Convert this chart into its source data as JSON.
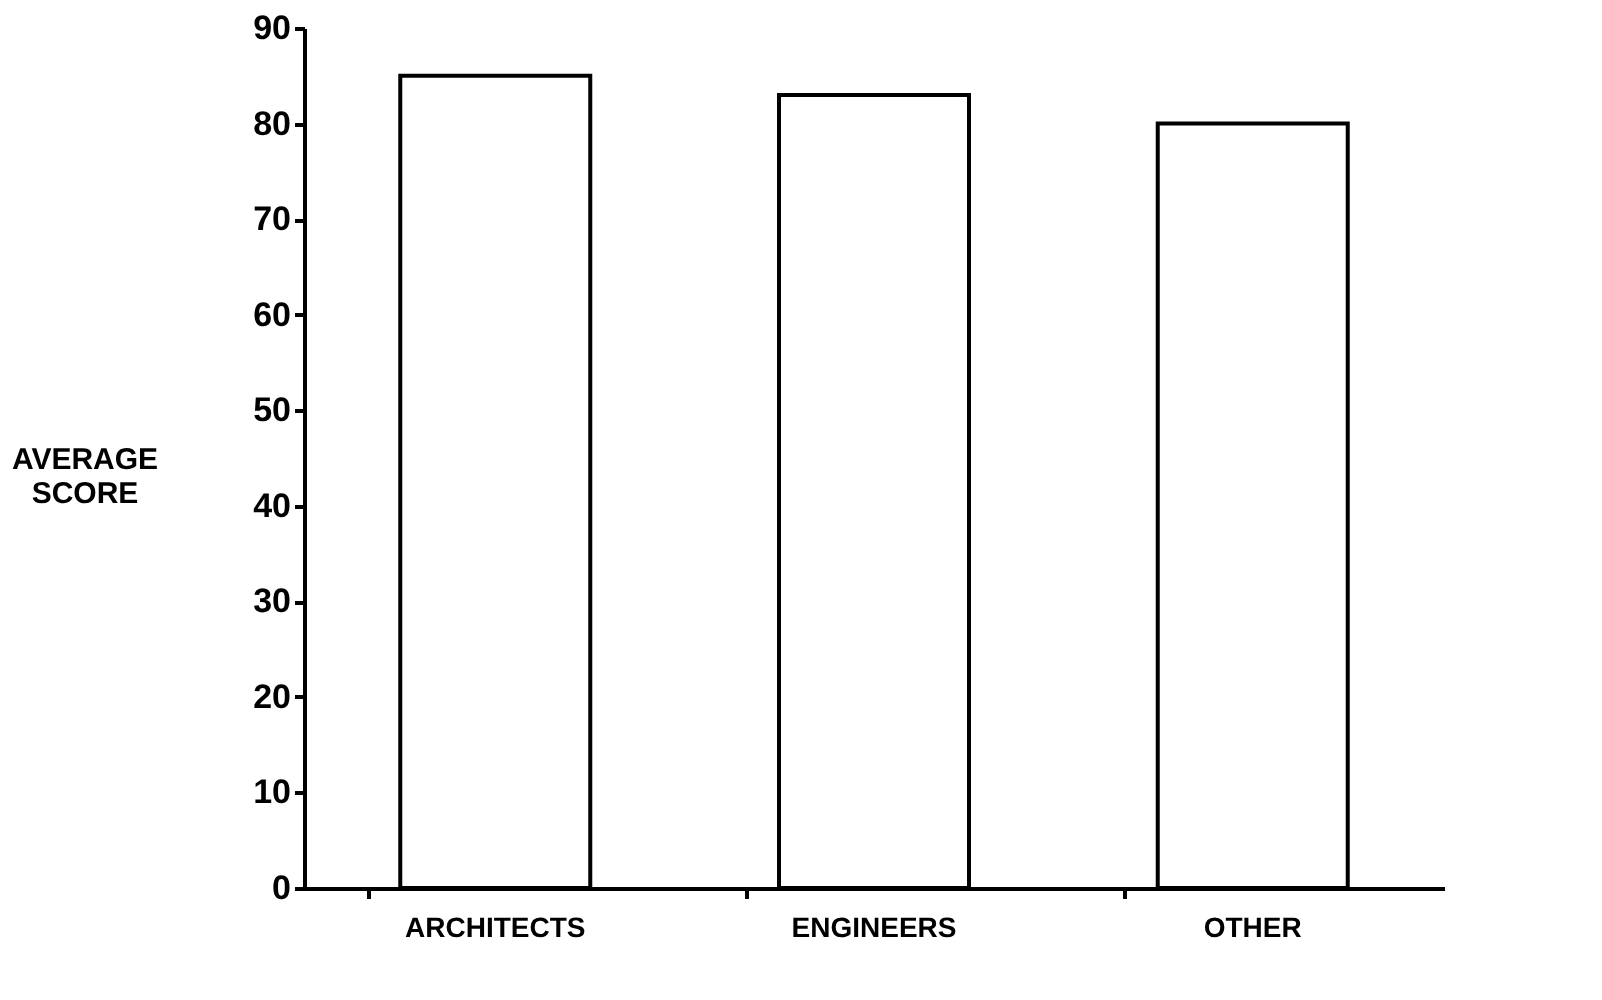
{
  "chart_data": {
    "type": "bar",
    "categories": [
      "ARCHITECTS",
      "ENGINEERS",
      "OTHER"
    ],
    "values": [
      85,
      83,
      80
    ],
    "color": "#ffffff",
    "ylabel": "AVERAGE SCORE",
    "ylim": [
      0,
      90
    ],
    "yticks": [
      0,
      10,
      20,
      30,
      40,
      50,
      60,
      70,
      80,
      90
    ],
    "grid": false
  }
}
